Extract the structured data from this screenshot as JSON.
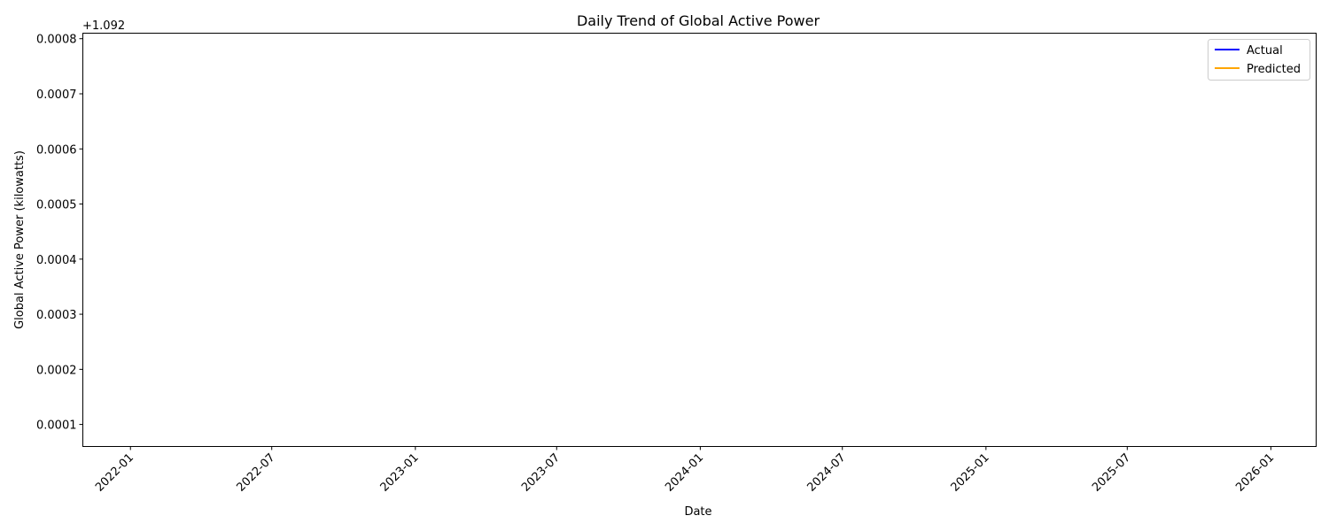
{
  "chart_data": {
    "type": "line",
    "title": "Daily Trend of Global Active Power",
    "xlabel": "Date",
    "ylabel": "Global Active Power (kilowatts)",
    "y_offset_label": "+1.092",
    "x_ticks": [
      "2022-01",
      "2022-07",
      "2023-01",
      "2023-07",
      "2024-01",
      "2024-07",
      "2025-01",
      "2025-07",
      "2026-01"
    ],
    "y_ticks": [
      "0.0001",
      "0.0002",
      "0.0003",
      "0.0004",
      "0.0005",
      "0.0006",
      "0.0007",
      "0.0008"
    ],
    "xlim": [
      "2021-11-01",
      "2026-02-28"
    ],
    "ylim": [
      6e-05,
      0.00081
    ],
    "grid": false,
    "legend_position": "upper right",
    "series": [
      {
        "name": "Actual",
        "color": "#0000ff",
        "values": []
      },
      {
        "name": "Predicted",
        "color": "#ffa500",
        "values": []
      }
    ]
  }
}
